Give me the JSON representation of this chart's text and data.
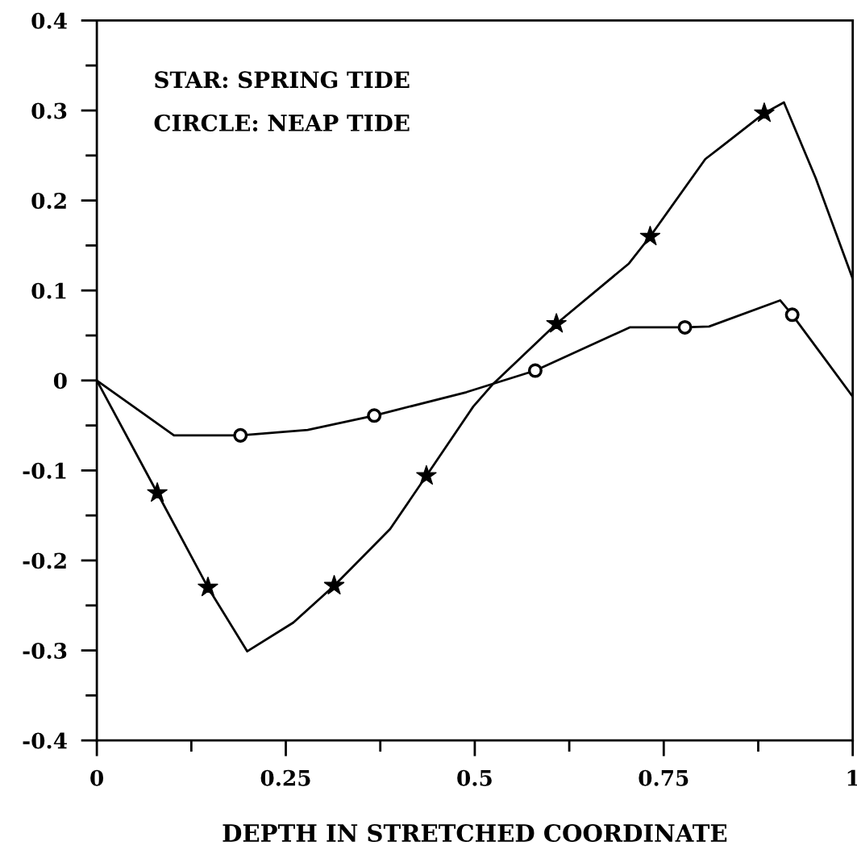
{
  "chart_data": {
    "type": "line",
    "xlabel": "DEPTH IN STRETCHED COORDINATE",
    "annotations": [
      "STAR: SPRING TIDE",
      "CIRCLE: NEAP TIDE"
    ],
    "series": [
      {
        "type": "line",
        "color": "#000000",
        "marker": "none",
        "x": [
          0,
          0.08,
          0.147,
          0.199,
          0.26,
          0.314,
          0.388,
          0.436,
          0.498,
          0.523,
          0.608,
          0.704,
          0.732,
          0.805,
          0.828,
          0.883,
          0.909,
          0.951,
          1.0
        ],
        "values": [
          0,
          -0.125,
          -0.23,
          -0.301,
          -0.269,
          -0.228,
          -0.165,
          -0.106,
          -0.029,
          -0.005,
          0.063,
          0.13,
          0.16,
          0.246,
          0.261,
          0.297,
          0.309,
          0.225,
          0.113
        ]
      },
      {
        "type": "line",
        "color": "#000000",
        "marker": "none",
        "x": [
          0,
          0.102,
          0.19,
          0.279,
          0.367,
          0.489,
          0.523,
          0.58,
          0.705,
          0.778,
          0.81,
          0.904,
          0.92,
          1.0
        ],
        "values": [
          0,
          -0.061,
          -0.061,
          -0.055,
          -0.039,
          -0.013,
          -0.004,
          0.011,
          0.059,
          0.059,
          0.06,
          0.089,
          0.073,
          -0.018
        ]
      },
      {
        "type": "scatter",
        "color": "#000000",
        "marker": "star",
        "x": [
          0.08,
          0.147,
          0.314,
          0.436,
          0.608,
          0.732,
          0.883
        ],
        "values": [
          -0.125,
          -0.23,
          -0.228,
          -0.106,
          0.063,
          0.16,
          0.297
        ]
      },
      {
        "type": "scatter",
        "color": "#000000",
        "marker": "circle",
        "x": [
          0.19,
          0.367,
          0.58,
          0.778,
          0.92
        ],
        "values": [
          -0.061,
          -0.039,
          0.011,
          0.059,
          0.073
        ]
      }
    ],
    "xlim": [
      0,
      1
    ],
    "ylim": [
      -0.4,
      0.4
    ],
    "xticks": [
      0,
      {
        "value": 0.125,
        "label": null
      },
      0.25,
      {
        "value": 0.375,
        "label": null
      },
      0.5,
      {
        "value": 0.625,
        "label": null
      },
      0.75,
      {
        "value": 0.875,
        "label": null
      },
      1
    ],
    "yticks": [
      -0.4,
      {
        "value": -0.35,
        "label": null
      },
      -0.3,
      {
        "value": -0.25,
        "label": null
      },
      -0.2,
      {
        "value": -0.15,
        "label": null
      },
      -0.1,
      {
        "value": -0.05,
        "label": null
      },
      0,
      {
        "value": 0.05,
        "label": null
      },
      0.1,
      {
        "value": 0.15,
        "label": null
      },
      0.2,
      {
        "value": 0.25,
        "label": null
      },
      0.3,
      {
        "value": 0.35,
        "label": null
      },
      0.4
    ],
    "grid": false,
    "legend": false
  }
}
